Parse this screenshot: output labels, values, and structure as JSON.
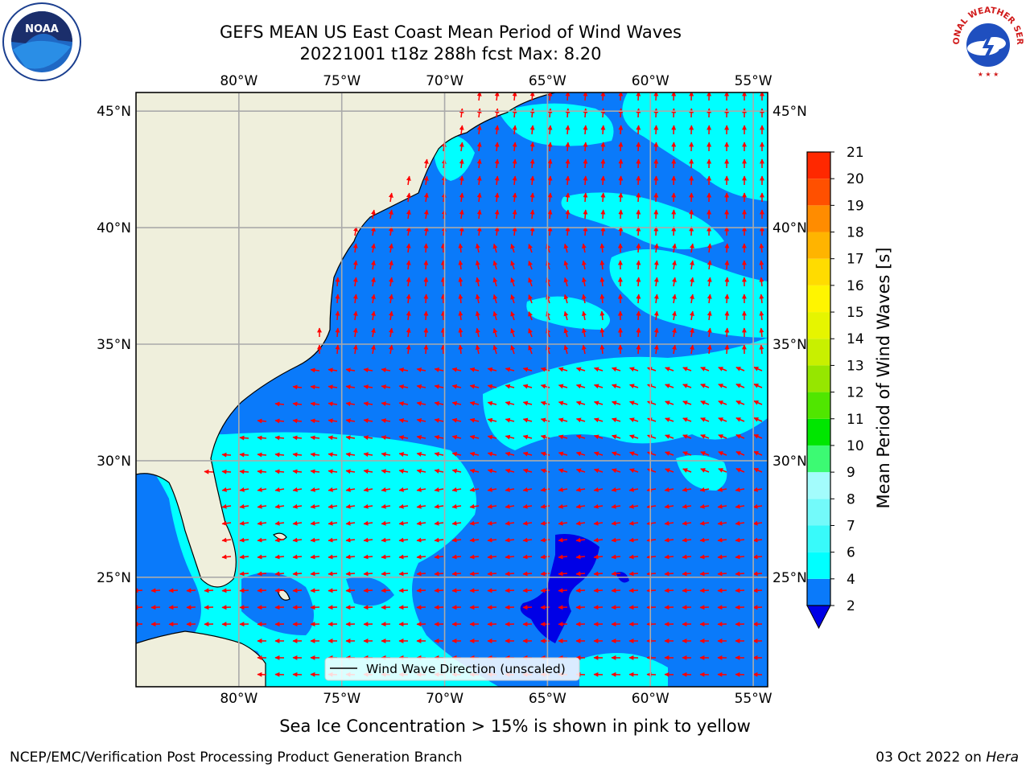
{
  "header": {
    "title_line1": "GEFS MEAN US East Coast Mean Period of Wind Waves",
    "title_line2": "20221001 t18z 288h fcst   Max: 8.20"
  },
  "logos": {
    "left": "NOAA",
    "right": "NATIONAL WEATHER SERVICE"
  },
  "map": {
    "lon_ticks": [
      "80°W",
      "75°W",
      "70°W",
      "65°W",
      "60°W",
      "55°W"
    ],
    "lat_ticks": [
      "45°N",
      "40°N",
      "35°N",
      "30°N",
      "25°N"
    ],
    "lon_values": [
      -80,
      -75,
      -70,
      -65,
      -60,
      -55
    ],
    "lat_values": [
      45,
      40,
      35,
      30,
      25
    ],
    "extent": {
      "lon_min": -85,
      "lon_max": -54.3,
      "lat_min": 20.3,
      "lat_max": 45.8
    },
    "legend_label": "Wind Wave Direction (unscaled)",
    "land_color": "#efefdc",
    "arrow_color": "#ff0000",
    "grid": true
  },
  "colorbar": {
    "title": "Mean Period of Wind Waves [s]",
    "levels": [
      "2",
      "4",
      "6",
      "7",
      "8",
      "9",
      "10",
      "11",
      "12",
      "13",
      "14",
      "15",
      "16",
      "17",
      "18",
      "19",
      "20",
      "21"
    ],
    "colors": [
      "#0a7afa",
      "#00ffff",
      "#38fafa",
      "#73fafa",
      "#a3fcfc",
      "#3cfa73",
      "#00e600",
      "#50e600",
      "#96e600",
      "#c8f000",
      "#e6f500",
      "#fff500",
      "#ffdc00",
      "#ffb400",
      "#ff8c00",
      "#ff5000",
      "#ff2800"
    ],
    "under_color": "#0000e6"
  },
  "chart_data": {
    "type": "heatmap",
    "title": "GEFS MEAN US East Coast Mean Period of Wind Waves",
    "subtitle": "20221001 t18z 288h fcst   Max: 8.20",
    "max_value": 8.2,
    "units": "s",
    "colorbar_range": [
      2,
      21
    ],
    "xlabel": "",
    "ylabel": ""
  },
  "footer": {
    "note": "Sea Ice Concentration > 15% is shown in pink to yellow",
    "credit": "NCEP/EMC/Verification Post Processing Product Generation Branch",
    "date": "03 Oct 2022 on ",
    "machine": "Hera"
  }
}
